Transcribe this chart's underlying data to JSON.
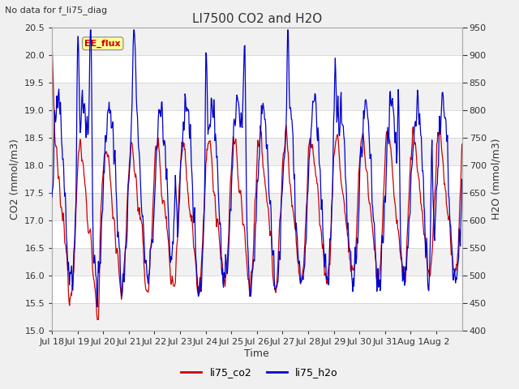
{
  "title": "LI7500 CO2 and H2O",
  "suptitle": "No data for f_li75_diag",
  "xlabel": "Time",
  "ylabel_left": "CO2 (mmol/m3)",
  "ylabel_right": "H2O (mmol/m3)",
  "ylim_left": [
    15.0,
    20.5
  ],
  "ylim_right": [
    400,
    950
  ],
  "yticks_left": [
    15.0,
    15.5,
    16.0,
    16.5,
    17.0,
    17.5,
    18.0,
    18.5,
    19.0,
    19.5,
    20.0,
    20.5
  ],
  "yticks_right": [
    400,
    450,
    500,
    550,
    600,
    650,
    700,
    750,
    800,
    850,
    900,
    950
  ],
  "legend_labels": [
    "li75_co2",
    "li75_h2o"
  ],
  "legend_colors": [
    "#cc0000",
    "#0000cc"
  ],
  "annotation_text": "EE_flux",
  "annotation_color": "#cc0000",
  "annotation_bg": "#ffff99",
  "line_co2_color": "#cc0000",
  "line_h2o_color": "#0000cc",
  "background_color": "#f0f0f0",
  "grid_line_color": "#cccccc",
  "title_fontsize": 11,
  "label_fontsize": 9,
  "tick_fontsize": 8,
  "suptitle_fontsize": 8
}
